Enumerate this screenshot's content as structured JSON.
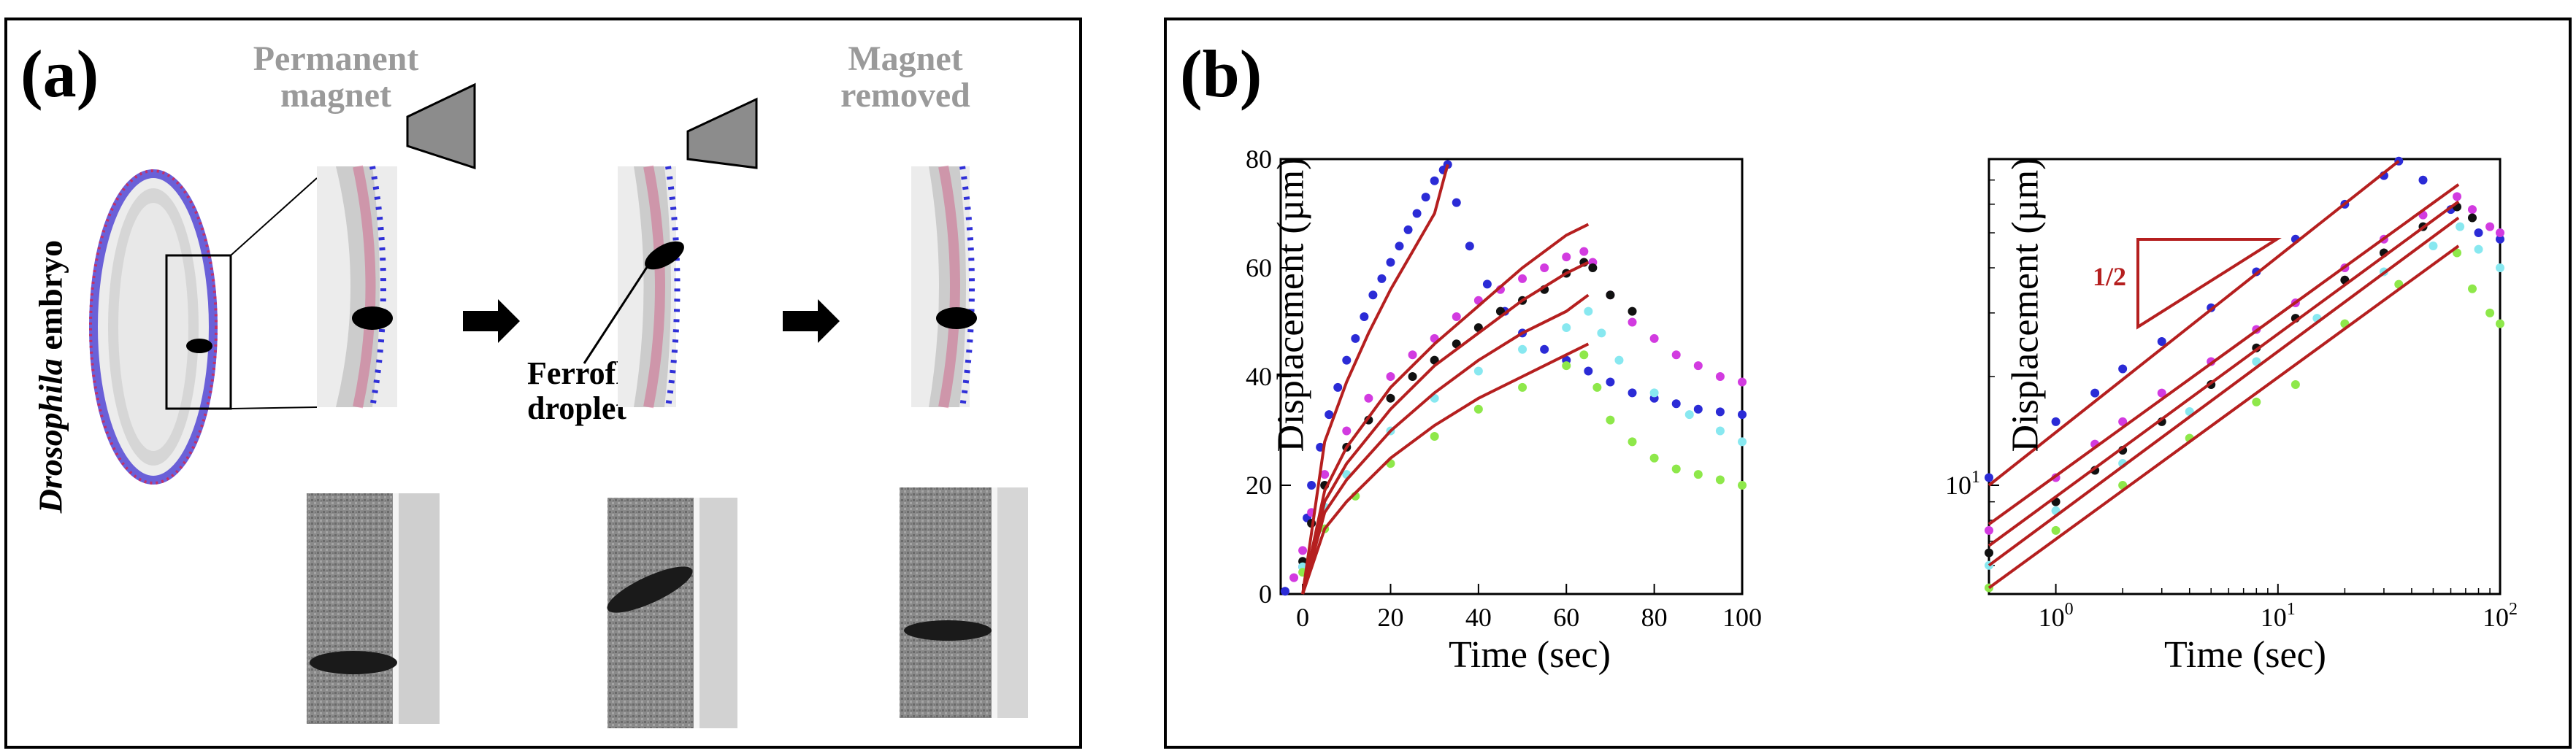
{
  "panel_a": {
    "label": "(a)",
    "permanent_magnet": [
      "Permanent",
      "magnet"
    ],
    "magnet_removed": [
      "Magnet",
      "removed"
    ],
    "embryo_label_italic": "Drosophila",
    "embryo_label_rest": " embryo",
    "ferrofluid_label": [
      "Ferrofluid",
      "droplet"
    ]
  },
  "panel_b": {
    "label": "(b)",
    "slope_label": "1/2",
    "colors": {
      "blue": "#2b2bd6",
      "magenta": "#d23be0",
      "black": "#111111",
      "cyan": "#88e8f0",
      "green": "#8ee84a",
      "fit": "#b51f1f"
    }
  },
  "chart_data": [
    {
      "type": "scatter",
      "xlabel": "Time (sec)",
      "ylabel": "Displacement (µm)",
      "xlim": [
        -5,
        100
      ],
      "ylim": [
        0,
        80
      ],
      "xticks": [
        0,
        20,
        40,
        60,
        80,
        100
      ],
      "yticks": [
        0,
        20,
        40,
        60,
        80
      ],
      "series": [
        {
          "color": "#2b2bd6",
          "points": [
            [
              -4,
              0.5
            ],
            [
              0,
              5
            ],
            [
              1,
              14
            ],
            [
              2,
              20
            ],
            [
              4,
              27
            ],
            [
              6,
              33
            ],
            [
              8,
              38
            ],
            [
              10,
              43
            ],
            [
              12,
              47
            ],
            [
              14,
              51
            ],
            [
              16,
              55
            ],
            [
              18,
              58
            ],
            [
              20,
              61
            ],
            [
              22,
              64
            ],
            [
              24,
              67
            ],
            [
              26,
              70
            ],
            [
              28,
              73
            ],
            [
              30,
              76
            ],
            [
              32,
              78
            ],
            [
              33,
              79
            ],
            [
              35,
              72
            ],
            [
              38,
              64
            ],
            [
              42,
              57
            ],
            [
              46,
              52
            ],
            [
              50,
              48
            ],
            [
              55,
              45
            ],
            [
              60,
              43
            ],
            [
              65,
              41
            ],
            [
              70,
              39
            ],
            [
              75,
              37
            ],
            [
              80,
              36
            ],
            [
              85,
              35
            ],
            [
              90,
              34
            ],
            [
              95,
              33.5
            ],
            [
              100,
              33
            ]
          ]
        },
        {
          "color": "#d23be0",
          "points": [
            [
              -2,
              3
            ],
            [
              0,
              8
            ],
            [
              2,
              15
            ],
            [
              5,
              22
            ],
            [
              10,
              30
            ],
            [
              15,
              36
            ],
            [
              20,
              40
            ],
            [
              25,
              44
            ],
            [
              30,
              47
            ],
            [
              35,
              51
            ],
            [
              40,
              54
            ],
            [
              45,
              56
            ],
            [
              50,
              58
            ],
            [
              55,
              60
            ],
            [
              60,
              62
            ],
            [
              64,
              63
            ],
            [
              66,
              61
            ],
            [
              70,
              55
            ],
            [
              75,
              50
            ],
            [
              80,
              47
            ],
            [
              85,
              44
            ],
            [
              90,
              42
            ],
            [
              95,
              40
            ],
            [
              100,
              39
            ]
          ]
        },
        {
          "color": "#111111",
          "points": [
            [
              0,
              6
            ],
            [
              2,
              13
            ],
            [
              5,
              20
            ],
            [
              10,
              27
            ],
            [
              15,
              32
            ],
            [
              20,
              36
            ],
            [
              25,
              40
            ],
            [
              30,
              43
            ],
            [
              35,
              46
            ],
            [
              40,
              49
            ],
            [
              45,
              52
            ],
            [
              50,
              54
            ],
            [
              55,
              56
            ],
            [
              60,
              59
            ],
            [
              64,
              61
            ],
            [
              66,
              60
            ],
            [
              70,
              55
            ],
            [
              75,
              52
            ]
          ]
        },
        {
          "color": "#88e8f0",
          "points": [
            [
              0,
              5
            ],
            [
              5,
              16
            ],
            [
              10,
              22
            ],
            [
              20,
              30
            ],
            [
              30,
              36
            ],
            [
              40,
              41
            ],
            [
              50,
              45
            ],
            [
              60,
              49
            ],
            [
              65,
              52
            ],
            [
              68,
              48
            ],
            [
              72,
              43
            ],
            [
              80,
              37
            ],
            [
              88,
              33
            ],
            [
              95,
              30
            ],
            [
              100,
              28
            ]
          ]
        },
        {
          "color": "#8ee84a",
          "points": [
            [
              0,
              4
            ],
            [
              5,
              12
            ],
            [
              12,
              18
            ],
            [
              20,
              24
            ],
            [
              30,
              29
            ],
            [
              40,
              34
            ],
            [
              50,
              38
            ],
            [
              60,
              42
            ],
            [
              64,
              44
            ],
            [
              67,
              38
            ],
            [
              70,
              32
            ],
            [
              75,
              28
            ],
            [
              80,
              25
            ],
            [
              85,
              23
            ],
            [
              90,
              22
            ],
            [
              95,
              21
            ],
            [
              100,
              20
            ]
          ]
        }
      ],
      "fits": [
        {
          "color": "#b51f1f",
          "points": [
            [
              0,
              0
            ],
            [
              5,
              28
            ],
            [
              10,
              39
            ],
            [
              15,
              48
            ],
            [
              20,
              56
            ],
            [
              25,
              63
            ],
            [
              30,
              70
            ],
            [
              33,
              79
            ]
          ]
        },
        {
          "color": "#b51f1f",
          "points": [
            [
              0,
              0
            ],
            [
              5,
              19
            ],
            [
              10,
              27
            ],
            [
              20,
              38
            ],
            [
              30,
              46
            ],
            [
              40,
              53
            ],
            [
              50,
              60
            ],
            [
              60,
              66
            ],
            [
              65,
              68
            ]
          ]
        },
        {
          "color": "#b51f1f",
          "points": [
            [
              0,
              0
            ],
            [
              5,
              17
            ],
            [
              10,
              24
            ],
            [
              20,
              34
            ],
            [
              30,
              42
            ],
            [
              40,
              48
            ],
            [
              50,
              54
            ],
            [
              60,
              59
            ],
            [
              65,
              61
            ]
          ]
        },
        {
          "color": "#b51f1f",
          "points": [
            [
              0,
              0
            ],
            [
              5,
              15
            ],
            [
              10,
              21
            ],
            [
              20,
              30
            ],
            [
              30,
              37
            ],
            [
              40,
              43
            ],
            [
              50,
              48
            ],
            [
              60,
              52
            ],
            [
              65,
              55
            ]
          ]
        },
        {
          "color": "#b51f1f",
          "points": [
            [
              0,
              0
            ],
            [
              5,
              12
            ],
            [
              10,
              17
            ],
            [
              20,
              25
            ],
            [
              30,
              31
            ],
            [
              40,
              36
            ],
            [
              50,
              40
            ],
            [
              60,
              44
            ],
            [
              65,
              46
            ]
          ]
        }
      ]
    },
    {
      "type": "scatter",
      "xlabel": "Time (sec)",
      "ylabel": "Displacement (µm)",
      "xscale": "log",
      "yscale": "log",
      "xlim": [
        0.5,
        100
      ],
      "ylim": [
        5,
        80
      ],
      "xticks": [
        1,
        10,
        100
      ],
      "xtick_labels": [
        "10^0",
        "10^1",
        "10^2"
      ],
      "yticks": [
        10
      ],
      "ytick_labels": [
        "10^1"
      ],
      "series": [
        {
          "color": "#2b2bd6",
          "points": [
            [
              0.5,
              10.5
            ],
            [
              1,
              15
            ],
            [
              1.5,
              18
            ],
            [
              2,
              21
            ],
            [
              3,
              25
            ],
            [
              5,
              31
            ],
            [
              8,
              39
            ],
            [
              12,
              48
            ],
            [
              20,
              60
            ],
            [
              30,
              72
            ],
            [
              35,
              79
            ],
            [
              45,
              70
            ],
            [
              60,
              58
            ],
            [
              80,
              50
            ],
            [
              100,
              48
            ]
          ]
        },
        {
          "color": "#d23be0",
          "points": [
            [
              0.5,
              7.5
            ],
            [
              1,
              10.5
            ],
            [
              1.5,
              13
            ],
            [
              2,
              15
            ],
            [
              3,
              18
            ],
            [
              5,
              22
            ],
            [
              8,
              27
            ],
            [
              12,
              32
            ],
            [
              20,
              40
            ],
            [
              30,
              48
            ],
            [
              45,
              56
            ],
            [
              64,
              63
            ],
            [
              75,
              58
            ],
            [
              90,
              52
            ],
            [
              100,
              50
            ]
          ]
        },
        {
          "color": "#111111",
          "points": [
            [
              0.5,
              6.5
            ],
            [
              1,
              9
            ],
            [
              1.5,
              11
            ],
            [
              2,
              12.5
            ],
            [
              3,
              15
            ],
            [
              5,
              19
            ],
            [
              8,
              24
            ],
            [
              12,
              29
            ],
            [
              20,
              37
            ],
            [
              30,
              44
            ],
            [
              45,
              52
            ],
            [
              64,
              59
            ],
            [
              75,
              55
            ]
          ]
        },
        {
          "color": "#88e8f0",
          "points": [
            [
              0.5,
              6
            ],
            [
              1,
              8.5
            ],
            [
              2,
              11.5
            ],
            [
              4,
              16
            ],
            [
              8,
              22
            ],
            [
              15,
              29
            ],
            [
              30,
              39
            ],
            [
              50,
              46
            ],
            [
              66,
              52
            ],
            [
              80,
              45
            ],
            [
              100,
              40
            ]
          ]
        },
        {
          "color": "#8ee84a",
          "points": [
            [
              0.5,
              5.2
            ],
            [
              1,
              7.5
            ],
            [
              2,
              10
            ],
            [
              4,
              13.5
            ],
            [
              8,
              17
            ],
            [
              12,
              19
            ],
            [
              20,
              28
            ],
            [
              35,
              36
            ],
            [
              64,
              44
            ],
            [
              75,
              35
            ],
            [
              90,
              30
            ],
            [
              100,
              28
            ]
          ]
        }
      ],
      "fits": [
        {
          "color": "#b51f1f",
          "points": [
            [
              0.5,
              10
            ],
            [
              35,
              79
            ]
          ]
        },
        {
          "color": "#b51f1f",
          "points": [
            [
              0.5,
              7.8
            ],
            [
              65,
              68
            ]
          ]
        },
        {
          "color": "#b51f1f",
          "points": [
            [
              0.5,
              6.8
            ],
            [
              65,
              61
            ]
          ]
        },
        {
          "color": "#b51f1f",
          "points": [
            [
              0.5,
              6.0
            ],
            [
              65,
              55
            ]
          ]
        },
        {
          "color": "#b51f1f",
          "points": [
            [
              0.5,
              5.2
            ],
            [
              65,
              46
            ]
          ]
        }
      ]
    }
  ]
}
